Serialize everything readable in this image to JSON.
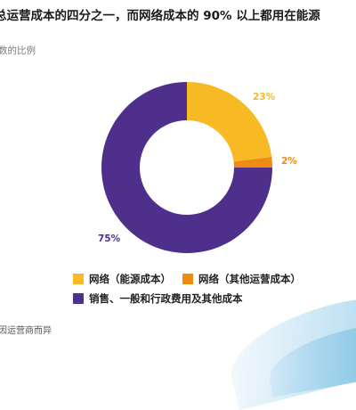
{
  "headline": "总运营成本的四分之一，而网络成本的 90% 以上都用在能源",
  "subtitle": "数的比例",
  "footnote": "因运营商而异",
  "chart_data": {
    "type": "pie",
    "donut": true,
    "slices": [
      {
        "name": "网络（能源成本）",
        "value": 23,
        "label": "23%",
        "color": "#F7B924"
      },
      {
        "name": "网络（其他运营成本）",
        "value": 2,
        "label": "2%",
        "color": "#EF8A12"
      },
      {
        "name": "销售、一般和行政费用及其他成本",
        "value": 75,
        "label": "75%",
        "color": "#4F2F8C"
      }
    ],
    "legend": {
      "position": "bottom",
      "entries": [
        "网络（能源成本）",
        "网络（其他运营成本）",
        "销售、一般和行政费用及其他成本"
      ]
    }
  }
}
